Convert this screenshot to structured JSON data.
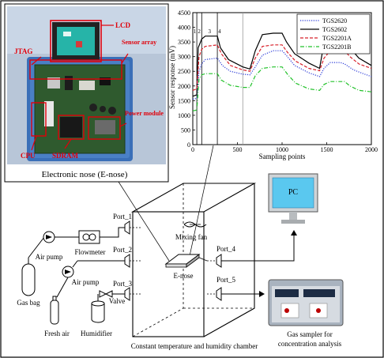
{
  "photo": {
    "caption": "Electronic nose (E-nose)",
    "labels": {
      "lcd": "LCD",
      "jtag": "JTAG",
      "sensor_array": "Sensor array",
      "power_module": "Power module",
      "cpu": "CPU",
      "sdram": "SDRAM"
    }
  },
  "chart_data": {
    "type": "line",
    "ylabel": "Sensor response (mV)",
    "xlabel": "Sampling points",
    "xlim": [
      0,
      2000
    ],
    "ylim": [
      0,
      4500
    ],
    "xticks": [
      "0",
      "500",
      "1000",
      "1500",
      "2000"
    ],
    "yticks": [
      "0",
      "500",
      "1000",
      "1500",
      "2000",
      "2500",
      "3000",
      "3500",
      "4000",
      "4500"
    ],
    "phase_labels": [
      "1",
      "2",
      "3",
      "4"
    ],
    "phase_lines_x": [
      45,
      100,
      275,
      560
    ],
    "legend_position": "top-right",
    "series": [
      {
        "name": "TGS2620",
        "color": "#2b3bd8",
        "style": "dotted",
        "points": [
          [
            0,
            1550
          ],
          [
            45,
            1580
          ],
          [
            70,
            2500
          ],
          [
            100,
            2750
          ],
          [
            140,
            2900
          ],
          [
            275,
            2950
          ],
          [
            330,
            2700
          ],
          [
            420,
            2500
          ],
          [
            560,
            2400
          ],
          [
            640,
            2380
          ],
          [
            700,
            2650
          ],
          [
            780,
            3050
          ],
          [
            900,
            3200
          ],
          [
            1000,
            3200
          ],
          [
            1060,
            3000
          ],
          [
            1140,
            2700
          ],
          [
            1300,
            2450
          ],
          [
            1420,
            2320
          ],
          [
            1470,
            2600
          ],
          [
            1540,
            2800
          ],
          [
            1650,
            2800
          ],
          [
            1700,
            2750
          ],
          [
            1800,
            2550
          ],
          [
            1900,
            2430
          ],
          [
            2000,
            2320
          ]
        ]
      },
      {
        "name": "TGS2602",
        "color": "#000000",
        "style": "solid",
        "points": [
          [
            0,
            1650
          ],
          [
            45,
            1700
          ],
          [
            60,
            3300
          ],
          [
            100,
            3600
          ],
          [
            140,
            3700
          ],
          [
            275,
            3700
          ],
          [
            310,
            3300
          ],
          [
            400,
            2900
          ],
          [
            560,
            2650
          ],
          [
            640,
            2580
          ],
          [
            700,
            3200
          ],
          [
            780,
            3750
          ],
          [
            900,
            3800
          ],
          [
            1000,
            3800
          ],
          [
            1050,
            3500
          ],
          [
            1140,
            3100
          ],
          [
            1300,
            2780
          ],
          [
            1420,
            2600
          ],
          [
            1460,
            3300
          ],
          [
            1540,
            3600
          ],
          [
            1700,
            3600
          ],
          [
            1760,
            3300
          ],
          [
            1860,
            2950
          ],
          [
            2000,
            2700
          ]
        ]
      },
      {
        "name": "TGS2201A",
        "color": "#d8202a",
        "style": "dashed",
        "points": [
          [
            0,
            1850
          ],
          [
            45,
            1900
          ],
          [
            70,
            3000
          ],
          [
            100,
            3250
          ],
          [
            140,
            3350
          ],
          [
            275,
            3400
          ],
          [
            320,
            3100
          ],
          [
            420,
            2700
          ],
          [
            560,
            2550
          ],
          [
            640,
            2500
          ],
          [
            700,
            2950
          ],
          [
            780,
            3350
          ],
          [
            900,
            3400
          ],
          [
            1000,
            3400
          ],
          [
            1060,
            3150
          ],
          [
            1150,
            2850
          ],
          [
            1300,
            2600
          ],
          [
            1420,
            2520
          ],
          [
            1470,
            2950
          ],
          [
            1540,
            3200
          ],
          [
            1700,
            3200
          ],
          [
            1760,
            3000
          ],
          [
            1860,
            2750
          ],
          [
            2000,
            2600
          ]
        ]
      },
      {
        "name": "TGS2201B",
        "color": "#22c22a",
        "style": "dashdot",
        "points": [
          [
            0,
            1150
          ],
          [
            45,
            1180
          ],
          [
            70,
            2250
          ],
          [
            100,
            2380
          ],
          [
            140,
            2420
          ],
          [
            275,
            2420
          ],
          [
            320,
            2200
          ],
          [
            420,
            2020
          ],
          [
            560,
            1950
          ],
          [
            640,
            1950
          ],
          [
            700,
            2350
          ],
          [
            780,
            2600
          ],
          [
            900,
            2650
          ],
          [
            1000,
            2650
          ],
          [
            1060,
            2400
          ],
          [
            1150,
            2100
          ],
          [
            1300,
            1900
          ],
          [
            1420,
            1850
          ],
          [
            1470,
            2050
          ],
          [
            1540,
            2150
          ],
          [
            1700,
            2150
          ],
          [
            1760,
            2000
          ],
          [
            1860,
            1850
          ],
          [
            2000,
            1800
          ]
        ]
      }
    ]
  },
  "setup": {
    "gas_bag": "Gas bag",
    "air_pump_1": "Air pump",
    "flowmeter": "Flowmeter",
    "port_1": "Port_1",
    "port_2": "Port_2",
    "air_pump_2": "Air pump",
    "port_3": "Port_3",
    "valve": "Valve",
    "fresh_air": "Fresh air",
    "humidifier": "Humidifier",
    "mixing_fan": "Mixing fan",
    "e_nose": "E-nose",
    "port_4": "Port_4",
    "port_5": "Port_5",
    "pc": "PC",
    "chamber": "Constant temperature and humidity chamber",
    "gas_sampler_line1": "Gas sampler for",
    "gas_sampler_line2": "concentration analysis"
  }
}
